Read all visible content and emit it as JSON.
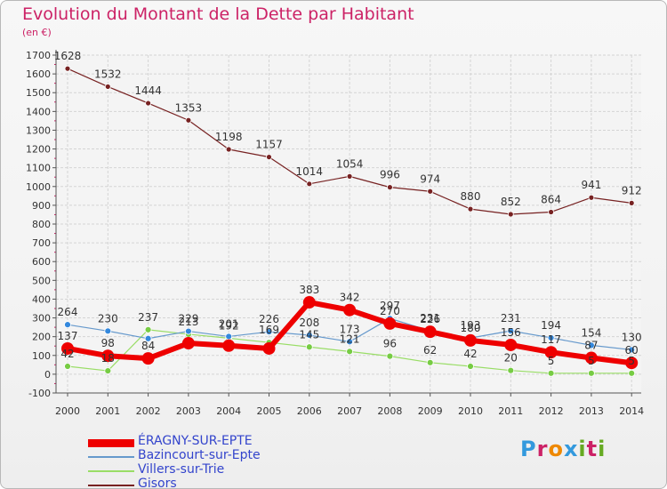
{
  "header": {
    "title": "Evolution du Montant de la Dette par Habitant",
    "subtitle": "(en €)"
  },
  "logo": {
    "text": "Proxiti",
    "colors": [
      "#3399dd",
      "#cc2266",
      "#ee8800",
      "#3399dd",
      "#66aa22",
      "#cc2266",
      "#66aa22"
    ]
  },
  "chart_data": {
    "type": "line",
    "title": "Evolution du Montant de la Dette par Habitant",
    "ylabel": "(en €)",
    "ylim": [
      -100,
      1700
    ],
    "yticks": [
      -100,
      0,
      100,
      200,
      300,
      400,
      500,
      600,
      700,
      800,
      900,
      1000,
      1100,
      1200,
      1300,
      1400,
      1500,
      1600,
      1700
    ],
    "categories": [
      "2000",
      "2001",
      "2002",
      "2003",
      "2004",
      "2005",
      "2006",
      "2007",
      "2008",
      "2009",
      "2010",
      "2011",
      "2012",
      "2013",
      "2014"
    ],
    "grid": true,
    "legend_position": "bottom-left",
    "series": [
      {
        "name": "ÉRAGNY-SUR-EPTE",
        "color": "#ee0000",
        "values": [
          137,
          98,
          84,
          165,
          152,
          137,
          383,
          342,
          270,
          226,
          180,
          156,
          117,
          87,
          60
        ],
        "labels": [
          "137",
          "98",
          "84",
          "",
          "",
          "",
          "383",
          "342",
          "270",
          "226",
          "180",
          "156",
          "117",
          "87",
          "60"
        ]
      },
      {
        "name": "Bazincourt-sur-Epte",
        "color": "#6699cc",
        "values": [
          264,
          230,
          190,
          229,
          201,
          226,
          208,
          173,
          297,
          231,
          193,
          231,
          194,
          154,
          130
        ],
        "labels": [
          "264",
          "230",
          "",
          "229",
          "201",
          "226",
          "208",
          "173",
          "297",
          "231",
          "193",
          "231",
          "194",
          "154",
          "130"
        ]
      },
      {
        "name": "Villers-sur-Trie",
        "color": "#99dd66",
        "values": [
          42,
          18,
          237,
          213,
          192,
          169,
          145,
          121,
          96,
          62,
          42,
          20,
          5,
          5,
          5
        ],
        "labels": [
          "42",
          "18",
          "237",
          "213",
          "192",
          "169",
          "145",
          "121",
          "96",
          "62",
          "42",
          "20",
          "5",
          "5",
          "5"
        ]
      },
      {
        "name": "Gisors",
        "color": "#772222",
        "values": [
          1628,
          1532,
          1444,
          1353,
          1198,
          1157,
          1014,
          1054,
          996,
          974,
          880,
          852,
          864,
          941,
          912
        ],
        "labels": [
          "1628",
          "1532",
          "1444",
          "1353",
          "1198",
          "1157",
          "1014",
          "1054",
          "996",
          "974",
          "880",
          "852",
          "864",
          "941",
          "912"
        ]
      }
    ]
  }
}
